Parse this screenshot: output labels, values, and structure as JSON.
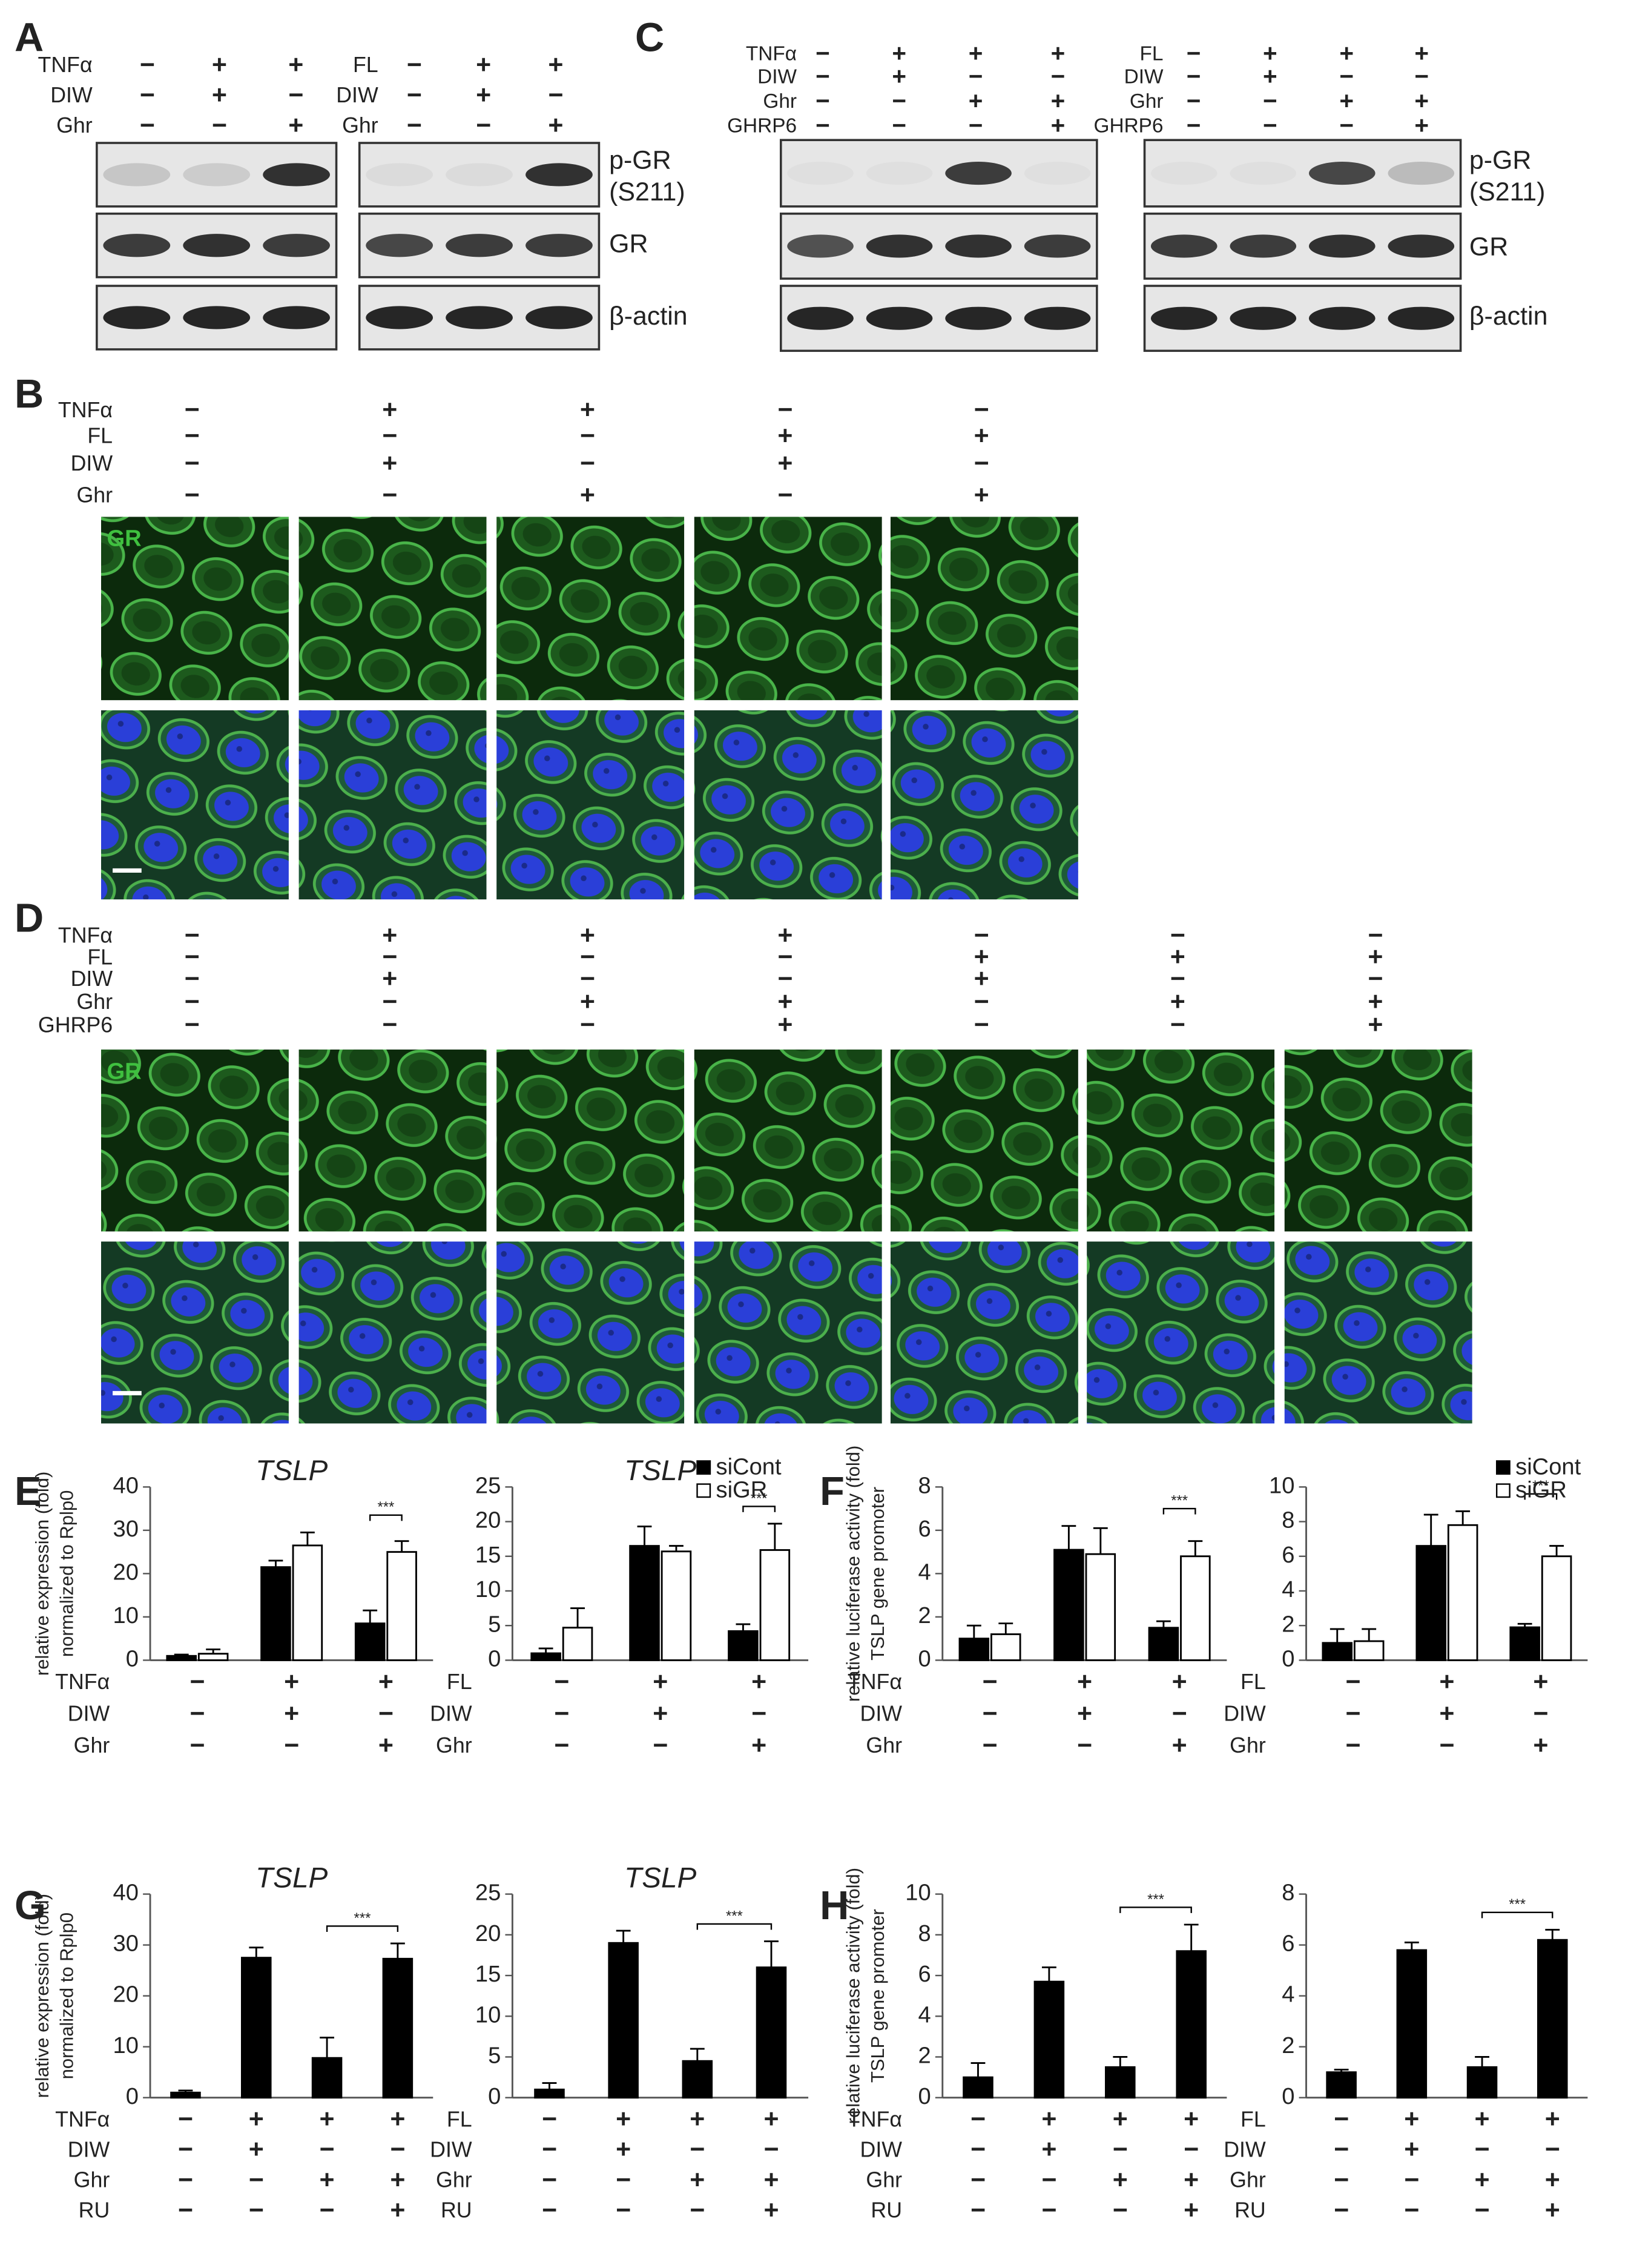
{
  "panel_letters": [
    "A",
    "B",
    "C",
    "D",
    "E",
    "F",
    "G",
    "H"
  ],
  "panel_a": {
    "groups": [
      {
        "conditions": [
          {
            "label": "TNFα",
            "signs": [
              "−",
              "+",
              "+"
            ]
          },
          {
            "label": "DIW",
            "signs": [
              "−",
              "+",
              "−"
            ]
          },
          {
            "label": "Ghr",
            "signs": [
              "−",
              "−",
              "+"
            ]
          }
        ]
      },
      {
        "conditions": [
          {
            "label": "FL",
            "signs": [
              "−",
              "+",
              "+"
            ]
          },
          {
            "label": "DIW",
            "signs": [
              "−",
              "+",
              "−"
            ]
          },
          {
            "label": "Ghr",
            "signs": [
              "−",
              "−",
              "+"
            ]
          }
        ]
      }
    ],
    "blot_labels": [
      "p-GR",
      "(S211)",
      "GR",
      "β-actin"
    ]
  },
  "panel_c": {
    "groups": [
      {
        "conditions": [
          {
            "label": "TNFα",
            "signs": [
              "−",
              "+",
              "+",
              "+"
            ]
          },
          {
            "label": "DIW",
            "signs": [
              "−",
              "+",
              "−",
              "−"
            ]
          },
          {
            "label": "Ghr",
            "signs": [
              "−",
              "−",
              "+",
              "+"
            ]
          },
          {
            "label": "GHRP6",
            "signs": [
              "−",
              "−",
              "−",
              "+"
            ]
          }
        ]
      },
      {
        "conditions": [
          {
            "label": "FL",
            "signs": [
              "−",
              "+",
              "+",
              "+"
            ]
          },
          {
            "label": "DIW",
            "signs": [
              "−",
              "+",
              "−",
              "−"
            ]
          },
          {
            "label": "Ghr",
            "signs": [
              "−",
              "−",
              "+",
              "+"
            ]
          },
          {
            "label": "GHRP6",
            "signs": [
              "−",
              "−",
              "−",
              "+"
            ]
          }
        ]
      }
    ],
    "blot_labels": [
      "p-GR",
      "(S211)",
      "GR",
      "β-actin"
    ]
  },
  "panel_b": {
    "conditions": [
      {
        "label": "TNFα",
        "signs": [
          "−",
          "+",
          "+",
          "−",
          "−"
        ]
      },
      {
        "label": "FL",
        "signs": [
          "−",
          "−",
          "−",
          "+",
          "+"
        ]
      },
      {
        "label": "DIW",
        "signs": [
          "−",
          "+",
          "−",
          "+",
          "−"
        ]
      },
      {
        "label": "Ghr",
        "signs": [
          "−",
          "−",
          "+",
          "−",
          "+"
        ]
      }
    ],
    "stain_label": "GR"
  },
  "panel_d": {
    "conditions": [
      {
        "label": "TNFα",
        "signs": [
          "−",
          "+",
          "+",
          "+",
          "−",
          "−",
          "−"
        ]
      },
      {
        "label": "FL",
        "signs": [
          "−",
          "−",
          "−",
          "−",
          "+",
          "+",
          "+"
        ]
      },
      {
        "label": "DIW",
        "signs": [
          "−",
          "+",
          "−",
          "−",
          "+",
          "−",
          "−"
        ]
      },
      {
        "label": "Ghr",
        "signs": [
          "−",
          "−",
          "+",
          "+",
          "−",
          "+",
          "+"
        ]
      },
      {
        "label": "GHRP6",
        "signs": [
          "−",
          "−",
          "−",
          "+",
          "−",
          "−",
          "+"
        ]
      }
    ],
    "stain_label": "GR"
  },
  "chart_data": [
    {
      "type": "bar",
      "title": "TSLP",
      "ylabel": [
        "relative expression (fold)",
        "normalized to Rplp0"
      ],
      "ylim": [
        0,
        40
      ],
      "yticks": [
        0,
        10,
        20,
        30,
        40
      ],
      "series": [
        {
          "color": "#000000",
          "values": [
            1,
            21.5,
            8.5
          ],
          "errors": [
            0.3,
            1.5,
            3
          ]
        },
        {
          "color": "#ffffff",
          "values": [
            1.5,
            26.5,
            25
          ],
          "errors": [
            1,
            3,
            2.5
          ]
        }
      ],
      "conditions": [
        {
          "label": "TNFα",
          "signs": [
            "−",
            "+",
            "+"
          ]
        },
        {
          "label": "DIW",
          "signs": [
            "−",
            "+",
            "−"
          ]
        },
        {
          "label": "Ghr",
          "signs": [
            "−",
            "−",
            "+"
          ]
        }
      ],
      "significance": "***"
    },
    {
      "type": "bar",
      "title": "TSLP",
      "ylim": [
        0,
        25
      ],
      "yticks": [
        0,
        5,
        10,
        15,
        20,
        25
      ],
      "series": [
        {
          "name": "siCont",
          "color": "#000000",
          "values": [
            1,
            16.5,
            4.2
          ],
          "errors": [
            0.7,
            2.8,
            1
          ]
        },
        {
          "name": "siGR",
          "color": "#ffffff",
          "values": [
            4.7,
            15.7,
            15.9
          ],
          "errors": [
            2.8,
            0.8,
            3.8
          ]
        }
      ],
      "conditions": [
        {
          "label": "FL",
          "signs": [
            "−",
            "+",
            "+"
          ]
        },
        {
          "label": "DIW",
          "signs": [
            "−",
            "+",
            "−"
          ]
        },
        {
          "label": "Ghr",
          "signs": [
            "−",
            "−",
            "+"
          ]
        }
      ],
      "significance": "***"
    },
    {
      "type": "bar",
      "ylabel": [
        "relative luciferase activity (fold)",
        "TSLP gene promoter"
      ],
      "ylim": [
        0,
        8
      ],
      "yticks": [
        0,
        2,
        4,
        6,
        8
      ],
      "series": [
        {
          "color": "#000000",
          "values": [
            1,
            5.1,
            1.5
          ],
          "errors": [
            0.6,
            1.1,
            0.3
          ]
        },
        {
          "color": "#ffffff",
          "values": [
            1.2,
            4.9,
            4.8
          ],
          "errors": [
            0.5,
            1.2,
            0.7
          ]
        }
      ],
      "conditions": [
        {
          "label": "TNFα",
          "signs": [
            "−",
            "+",
            "+"
          ]
        },
        {
          "label": "DIW",
          "signs": [
            "−",
            "+",
            "−"
          ]
        },
        {
          "label": "Ghr",
          "signs": [
            "−",
            "−",
            "+"
          ]
        }
      ],
      "significance": "***"
    },
    {
      "type": "bar",
      "ylim": [
        0,
        10
      ],
      "yticks": [
        0,
        2,
        4,
        6,
        8,
        10
      ],
      "series": [
        {
          "name": "siCont",
          "color": "#000000",
          "values": [
            1,
            6.6,
            1.9
          ],
          "errors": [
            0.8,
            1.8,
            0.2
          ]
        },
        {
          "name": "siGR",
          "color": "#ffffff",
          "values": [
            1.1,
            7.8,
            6.0
          ],
          "errors": [
            0.7,
            0.8,
            0.6
          ]
        }
      ],
      "conditions": [
        {
          "label": "FL",
          "signs": [
            "−",
            "+",
            "+"
          ]
        },
        {
          "label": "DIW",
          "signs": [
            "−",
            "+",
            "−"
          ]
        },
        {
          "label": "Ghr",
          "signs": [
            "−",
            "−",
            "+"
          ]
        }
      ],
      "significance": "***"
    },
    {
      "type": "bar",
      "title": "TSLP",
      "ylabel": [
        "relative expression (fold)",
        "normalized to Rplp0"
      ],
      "ylim": [
        0,
        40
      ],
      "yticks": [
        0,
        10,
        20,
        30,
        40
      ],
      "series": [
        {
          "color": "#000000",
          "values": [
            1,
            27.5,
            7.8,
            27.3
          ],
          "errors": [
            0.4,
            2,
            4,
            3
          ]
        }
      ],
      "conditions": [
        {
          "label": "TNFα",
          "signs": [
            "−",
            "+",
            "+",
            "+"
          ]
        },
        {
          "label": "DIW",
          "signs": [
            "−",
            "+",
            "−",
            "−"
          ]
        },
        {
          "label": "Ghr",
          "signs": [
            "−",
            "−",
            "+",
            "+"
          ]
        },
        {
          "label": "RU",
          "signs": [
            "−",
            "−",
            "−",
            "+"
          ]
        }
      ],
      "significance": "***"
    },
    {
      "type": "bar",
      "title": "TSLP",
      "ylim": [
        0,
        25
      ],
      "yticks": [
        0,
        5,
        10,
        15,
        20,
        25
      ],
      "series": [
        {
          "color": "#000000",
          "values": [
            1,
            19,
            4.5,
            16
          ],
          "errors": [
            0.8,
            1.5,
            1.5,
            3.2
          ]
        }
      ],
      "conditions": [
        {
          "label": "FL",
          "signs": [
            "−",
            "+",
            "+",
            "+"
          ]
        },
        {
          "label": "DIW",
          "signs": [
            "−",
            "+",
            "−",
            "−"
          ]
        },
        {
          "label": "Ghr",
          "signs": [
            "−",
            "−",
            "+",
            "+"
          ]
        },
        {
          "label": "RU",
          "signs": [
            "−",
            "−",
            "−",
            "+"
          ]
        }
      ],
      "significance": "***"
    },
    {
      "type": "bar",
      "ylabel": [
        "relative luciferase activity (fold)",
        "TSLP gene promoter"
      ],
      "ylim": [
        0,
        10
      ],
      "yticks": [
        0,
        2,
        4,
        6,
        8,
        10
      ],
      "series": [
        {
          "color": "#000000",
          "values": [
            1,
            5.7,
            1.5,
            7.2
          ],
          "errors": [
            0.7,
            0.7,
            0.5,
            1.3
          ]
        }
      ],
      "conditions": [
        {
          "label": "TNFα",
          "signs": [
            "−",
            "+",
            "+",
            "+"
          ]
        },
        {
          "label": "DIW",
          "signs": [
            "−",
            "+",
            "−",
            "−"
          ]
        },
        {
          "label": "Ghr",
          "signs": [
            "−",
            "−",
            "+",
            "+"
          ]
        },
        {
          "label": "RU",
          "signs": [
            "−",
            "−",
            "−",
            "+"
          ]
        }
      ],
      "significance": "***"
    },
    {
      "type": "bar",
      "ylim": [
        0,
        8
      ],
      "yticks": [
        0,
        2,
        4,
        6,
        8
      ],
      "series": [
        {
          "color": "#000000",
          "values": [
            1,
            5.8,
            1.2,
            6.2
          ],
          "errors": [
            0.1,
            0.3,
            0.4,
            0.4
          ]
        }
      ],
      "conditions": [
        {
          "label": "FL",
          "signs": [
            "−",
            "+",
            "+",
            "+"
          ]
        },
        {
          "label": "DIW",
          "signs": [
            "−",
            "+",
            "−",
            "−"
          ]
        },
        {
          "label": "Ghr",
          "signs": [
            "−",
            "−",
            "+",
            "+"
          ]
        },
        {
          "label": "RU",
          "signs": [
            "−",
            "−",
            "−",
            "+"
          ]
        }
      ],
      "significance": "***"
    }
  ]
}
